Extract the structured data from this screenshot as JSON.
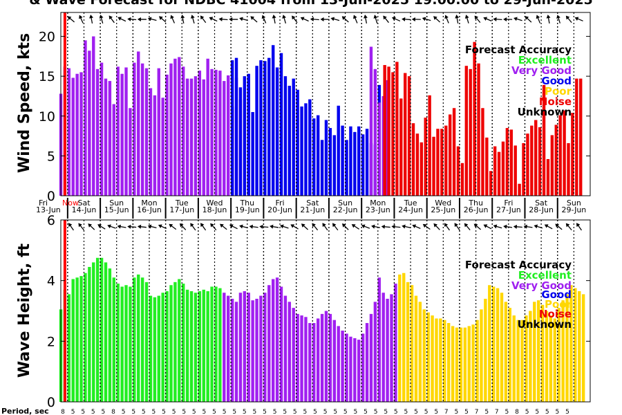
{
  "title": "& Wave Forecast for NDBC 41004 from 13-Jun-2025 19:00:00 to 29-Jun-2025",
  "period_label": "Period, sec",
  "now_label": "Now",
  "colors": {
    "Excellent": "#22ee22",
    "Very Good": "#a020f0",
    "Good": "#0000ee",
    "Poor": "#ffd700",
    "Noise": "#ee0000",
    "Unknown": "#000000",
    "now_line": "#ff0000"
  },
  "legend": {
    "title": "Forecast Accuracy",
    "items": [
      {
        "label": "Excellent",
        "color": "#22ee22"
      },
      {
        "label": "Very Good",
        "color": "#a020f0"
      },
      {
        "label": "Good",
        "color": "#0000ee"
      },
      {
        "label": "Poor",
        "color": "#ffd700"
      },
      {
        "label": "Noise",
        "color": "#ee0000"
      },
      {
        "label": "Unknown",
        "color": "#000000"
      }
    ]
  },
  "days": [
    {
      "top": "Fri",
      "bottom": "13-Jun"
    },
    {
      "top": "Sat",
      "bottom": "14-Jun"
    },
    {
      "top": "Sun",
      "bottom": "15-Jun"
    },
    {
      "top": "Mon",
      "bottom": "16-Jun"
    },
    {
      "top": "Tue",
      "bottom": "17-Jun"
    },
    {
      "top": "Wed",
      "bottom": "18-Jun"
    },
    {
      "top": "Thu",
      "bottom": "19-Jun"
    },
    {
      "top": "Fri",
      "bottom": "20-Jun"
    },
    {
      "top": "Sat",
      "bottom": "21-Jun"
    },
    {
      "top": "Sun",
      "bottom": "22-Jun"
    },
    {
      "top": "Mon",
      "bottom": "23-Jun"
    },
    {
      "top": "Tue",
      "bottom": "24-Jun"
    },
    {
      "top": "Wed",
      "bottom": "25-Jun"
    },
    {
      "top": "Thu",
      "bottom": "26-Jun"
    },
    {
      "top": "Fri",
      "bottom": "27-Jun"
    },
    {
      "top": "Sat",
      "bottom": "28-Jun"
    },
    {
      "top": "Sun",
      "bottom": "29-Jun"
    }
  ],
  "chart_data": [
    {
      "type": "bar",
      "ylabel": "Wind Speed, kts",
      "ylim": [
        0,
        23
      ],
      "yticks": [
        0,
        5,
        10,
        15,
        20
      ],
      "grid": "dotted vertical lines at 12-hour marks",
      "legend_placement": "top-right",
      "x_start": "13-Jun-2025 19:00",
      "x_end": "29-Jun-2025 24:00",
      "now": "13-Jun-2025 22:00",
      "series": [
        {
          "accuracy": "Very Good",
          "from": "13-Jun-2025 19:00",
          "values": [
            12.8,
            16.2,
            16,
            14.8,
            15.3,
            15.5,
            19.5,
            18.2,
            20,
            15.9,
            16.7,
            14.7,
            14.4,
            11.5,
            16.2,
            15.3,
            16.1,
            11,
            16.7,
            18.1,
            16.6,
            16,
            13.5,
            12.6,
            16,
            12.3,
            15.2,
            16.6,
            17.2,
            17.4,
            16.2,
            14.7,
            14.7,
            15,
            15.7,
            14.6,
            17.2,
            15.9,
            15.8,
            15.7,
            14.4,
            15.1,
            11.2,
            14.8,
            12.1
          ]
        },
        {
          "accuracy": "Good",
          "from": "19-Jun-2025 01:00",
          "values": [
            17,
            17.3,
            13.6,
            15,
            15.3,
            10.5,
            16.3,
            17,
            16.9,
            17.3,
            18.9,
            16.1,
            17.9,
            15,
            13.8,
            14.7,
            13.3,
            11.2,
            11.6,
            12.1,
            9.7,
            10.1,
            7,
            9.5,
            8.5,
            7.6,
            11.3,
            8.8,
            7,
            8.7,
            8,
            8.7,
            7.7,
            8.4,
            6.6,
            6.4,
            13.9,
            9.5,
            8.7
          ]
        },
        {
          "accuracy": "Very Good",
          "from": "23-Jun-2025 07:00",
          "values": [
            18.7,
            15.9,
            11.7,
            12.5,
            14.5
          ]
        },
        {
          "accuracy": "Noise",
          "from": "23-Jun-2025 17:00",
          "values": [
            16.4,
            16.2,
            15.5,
            16.8,
            12.2,
            15.4,
            15,
            9.1,
            7.8,
            6.7,
            9.8,
            12.6,
            7.4,
            8.4,
            8.4,
            8.8,
            10.2,
            11,
            6.2,
            4.1,
            16.3,
            15.9,
            19.3,
            16.6,
            11,
            7.3,
            3.1,
            6.2,
            5.5,
            6.8,
            8.5,
            8.3,
            6.3,
            1.5,
            6.6,
            7.8,
            8.8,
            9.5,
            8.6,
            13.9,
            4.6,
            7.6,
            8.9,
            10.1,
            10.7,
            6.6,
            10.4,
            14.7,
            14.7
          ]
        }
      ],
      "direction_arrows": "wind direction arrows along top edge, one per 3 hours"
    },
    {
      "type": "bar",
      "ylabel": "Wave Height, ft",
      "ylim": [
        0,
        6
      ],
      "yticks": [
        0,
        2,
        4,
        6
      ],
      "grid": "dotted vertical lines at 12-hour marks",
      "legend_placement": "top-right",
      "x_start": "13-Jun-2025 19:00",
      "x_end": "29-Jun-2025 24:00",
      "now": "13-Jun-2025 22:00",
      "series": [
        {
          "accuracy": "Excellent",
          "from": "13-Jun-2025 19:00",
          "values": [
            3.05,
            3.7,
            3.55,
            4.05,
            4.1,
            4.15,
            4.25,
            4.45,
            4.6,
            4.75,
            4.75,
            4.6,
            4.4,
            4.1,
            3.9,
            3.8,
            3.85,
            3.8,
            4.1,
            4.2,
            4.1,
            3.95,
            3.5,
            3.45,
            3.5,
            3.6,
            3.65,
            3.85,
            3.95,
            4.05,
            3.9,
            3.7,
            3.65,
            3.6,
            3.65,
            3.7,
            3.65,
            3.8,
            3.8,
            3.75
          ]
        },
        {
          "accuracy": "Very Good",
          "from": "18-Jun-2025 19:00",
          "values": [
            3.6,
            3.5,
            3.4,
            3.3,
            3.6,
            3.65,
            3.6,
            3.35,
            3.4,
            3.5,
            3.6,
            3.85,
            4.05,
            4.1,
            3.8,
            3.5,
            3.3,
            3.1,
            2.9,
            2.85,
            2.8,
            2.6,
            2.6,
            2.75,
            2.9,
            3,
            2.9,
            2.7,
            2.5,
            2.35,
            2.25,
            2.15,
            2.1,
            2.05,
            2.25,
            2.6,
            2.9,
            3.3,
            4.1,
            3.6,
            3.4,
            3.55,
            3.9
          ]
        },
        {
          "accuracy": "Poor",
          "from": "24-Jun-2025 04:00",
          "values": [
            4.2,
            4.25,
            3.95,
            3.85,
            3.5,
            3.3,
            3.05,
            2.95,
            2.85,
            2.75,
            2.75,
            2.7,
            2.6,
            2.5,
            2.45,
            2.45,
            2.45,
            2.5,
            2.55,
            2.7,
            3.05,
            3.4,
            3.85,
            3.8,
            3.75,
            3.6,
            3.3,
            3.1,
            2.85,
            2.7,
            2.7,
            2.85,
            3,
            3.3,
            3.35,
            3.2,
            3,
            2.85,
            2.75,
            3.1,
            3.35,
            3.55,
            3.85,
            3.75,
            3.65,
            3.55
          ]
        }
      ],
      "direction_arrows": "wave direction arrows along top edge, one per 3 hours"
    }
  ],
  "period_values": [
    "8",
    "5",
    "5",
    "5",
    "5",
    "8",
    "5",
    "5",
    "5",
    "5",
    "5",
    "5",
    "5",
    "5",
    "5",
    "5",
    "5",
    "5",
    "5",
    "5",
    "5",
    "5",
    "5",
    "5",
    "5",
    "5",
    "5",
    "5",
    "5",
    "5",
    "5",
    "5",
    "5",
    "5",
    "5",
    "5",
    "5",
    "5",
    "7",
    "5",
    "5",
    "7",
    "5",
    "7",
    "5",
    "8",
    "5",
    "5",
    "5",
    "5",
    "5"
  ]
}
